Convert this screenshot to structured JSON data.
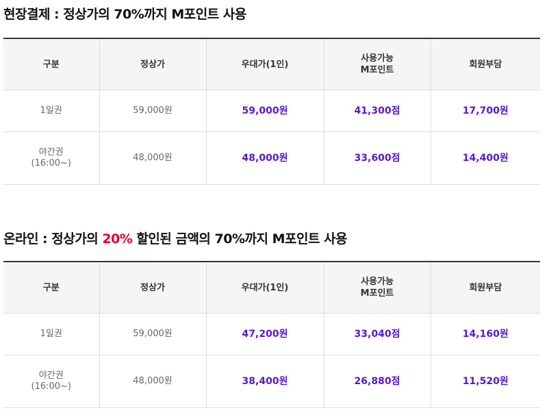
{
  "section1": {
    "heading": "현장결제 : 정상가의 70%까지 M포인트 사용",
    "headers": [
      "구분",
      "정상가",
      "우대가(1인)",
      "사용가능\nM포인트",
      "회원부담"
    ],
    "rows": [
      {
        "type": "1일권",
        "regular": "59,000원",
        "discount": "59,000원",
        "points": "41,300점",
        "member": "17,700원"
      },
      {
        "type": "야간권\n(16:00~)",
        "regular": "48,000원",
        "discount": "48,000원",
        "points": "33,600점",
        "member": "14,400원"
      }
    ]
  },
  "section2": {
    "heading_prefix": "온라인 : 정상가의 ",
    "heading_highlight": "20%",
    "heading_suffix": " 할인된 금액의 70%까지 M포인트 사용",
    "highlight_color": "#e4002b",
    "headers": [
      "구분",
      "정상가",
      "우대가(1인)",
      "사용가능\nM포인트",
      "회원부담"
    ],
    "rows": [
      {
        "type": "1일권",
        "regular": "59,000원",
        "discount": "47,200원",
        "points": "33,040점",
        "member": "14,160원"
      },
      {
        "type": "야간권\n(16:00~)",
        "regular": "48,000원",
        "discount": "38,400원",
        "points": "26,880점",
        "member": "11,520원"
      }
    ]
  },
  "colors": {
    "accent": "#5a18c9",
    "header_bg": "#f5f5f5",
    "border": "#dddddd"
  }
}
